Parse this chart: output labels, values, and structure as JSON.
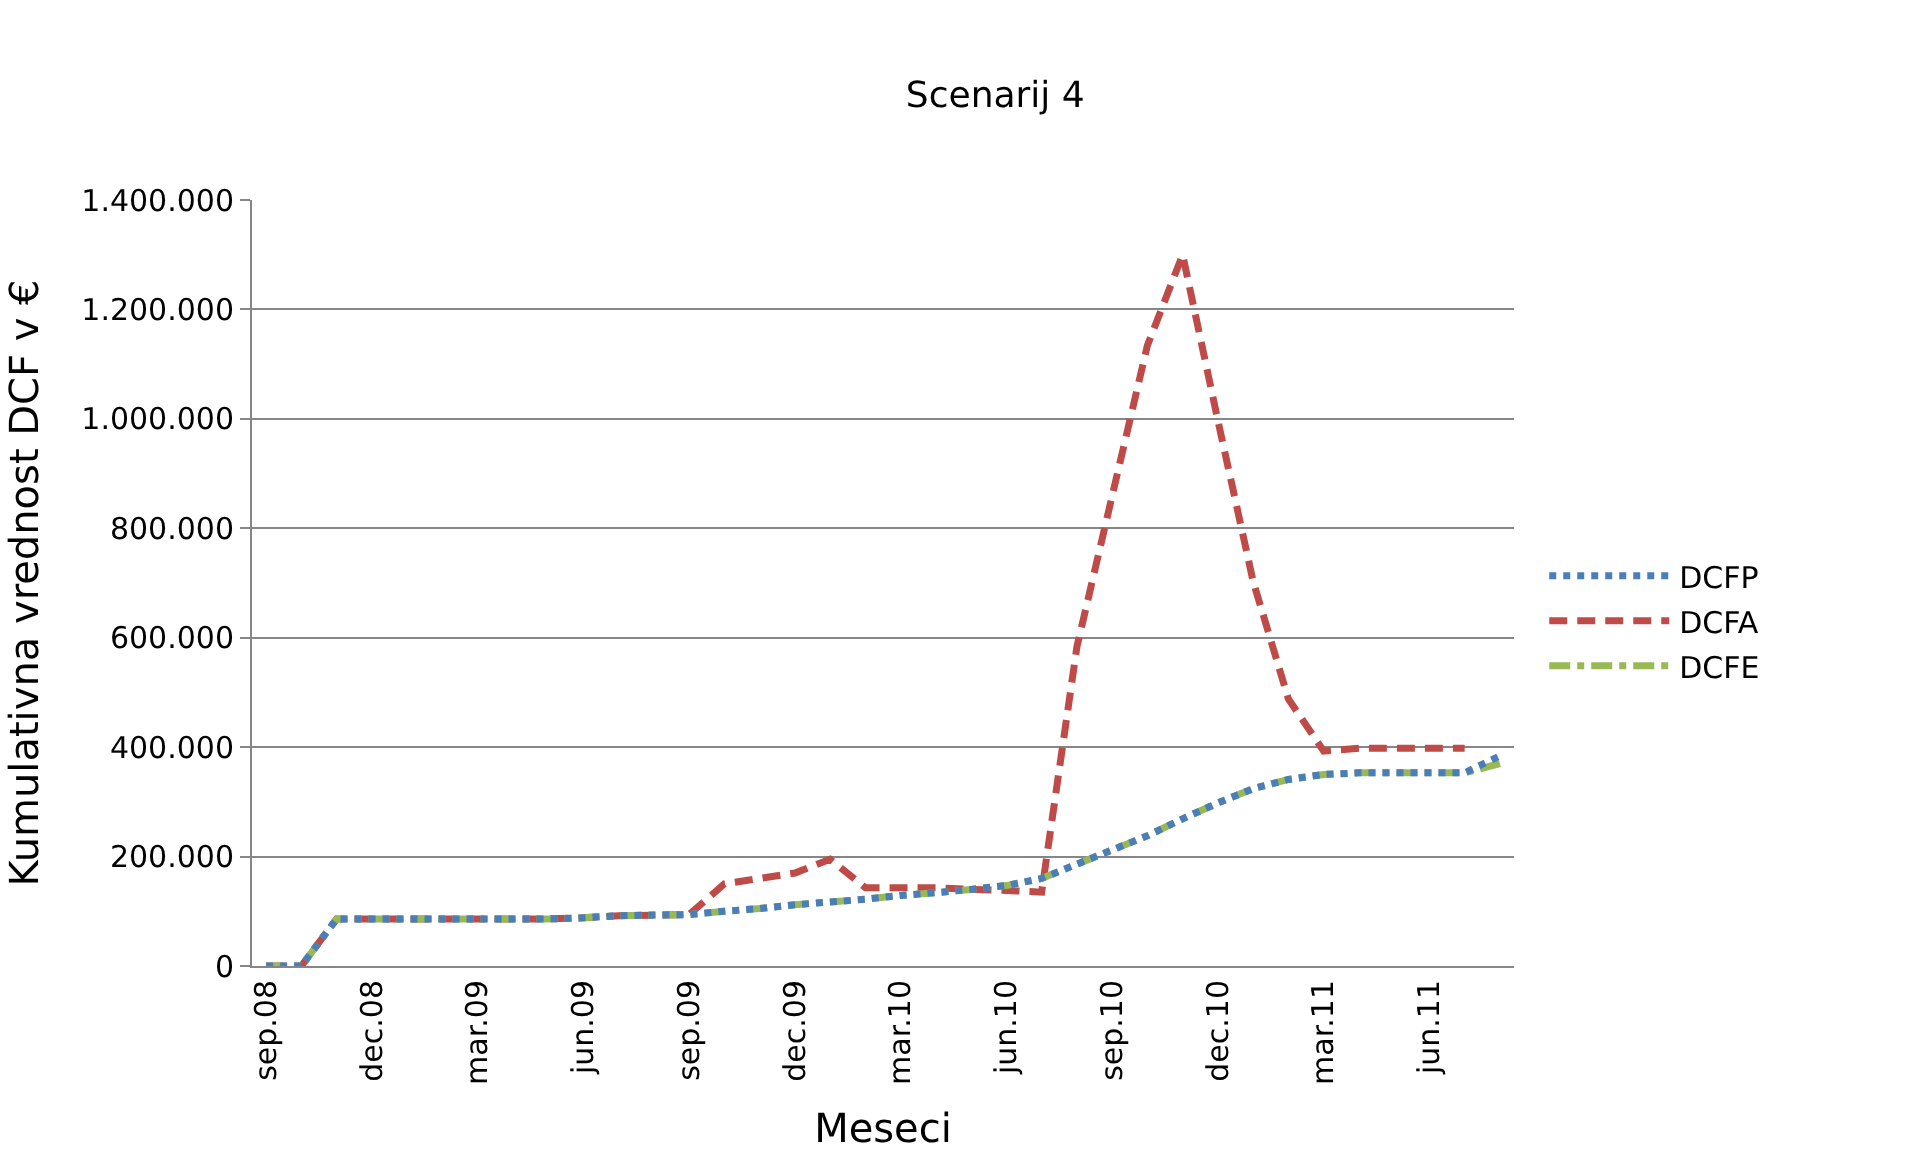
{
  "chart_data": {
    "type": "line",
    "title": "Scenarij 4",
    "xlabel": "Meseci",
    "ylabel": "Kumulativna vrednost DCF v €",
    "categories": [
      "sep.08",
      null,
      null,
      "dec.08",
      null,
      null,
      "mar.09",
      null,
      null,
      "jun.09",
      null,
      null,
      "sep.09",
      null,
      null,
      "dec.09",
      null,
      null,
      "mar.10",
      null,
      null,
      "jun.10",
      null,
      null,
      "sep.10",
      null,
      null,
      "dec.10",
      null,
      null,
      "mar.11",
      null,
      null,
      "jun.11",
      null,
      null
    ],
    "series": [
      {
        "name": "DCFP",
        "color": "#4a7ebb",
        "line_style": "dotted",
        "values": [
          0,
          0,
          86000,
          86000,
          86000,
          86000,
          86000,
          86000,
          86000,
          88000,
          92000,
          93000,
          94000,
          100000,
          105000,
          112000,
          117000,
          122000,
          129000,
          134000,
          140000,
          147000,
          160000,
          186000,
          212000,
          238000,
          269000,
          298000,
          324000,
          341000,
          350000,
          353000,
          353000,
          353000,
          353000,
          384000
        ]
      },
      {
        "name": "DCFA",
        "color": "#be4b48",
        "line_style": "dashed",
        "values": [
          0,
          0,
          86000,
          86000,
          86000,
          86000,
          86000,
          86000,
          86000,
          88000,
          92000,
          93000,
          94000,
          150000,
          160000,
          170000,
          195000,
          143000,
          143000,
          143000,
          140000,
          138000,
          135000,
          583000,
          859000,
          1134000,
          1300000,
          997000,
          703000,
          488000,
          393000,
          398000,
          398000,
          398000,
          398000,
          null
        ]
      },
      {
        "name": "DCFE",
        "color": "#98b954",
        "line_style": "dashdot",
        "values": [
          0,
          0,
          86000,
          86000,
          86000,
          86000,
          86000,
          86000,
          86000,
          88000,
          92000,
          93000,
          94000,
          100000,
          105000,
          112000,
          117000,
          122000,
          129000,
          134000,
          140000,
          147000,
          160000,
          186000,
          212000,
          238000,
          269000,
          298000,
          324000,
          341000,
          350000,
          353000,
          353000,
          353000,
          353000,
          370000
        ]
      }
    ],
    "ylim": [
      0,
      1400000
    ],
    "yticks": [
      {
        "value": 0,
        "label": "0"
      },
      {
        "value": 200000,
        "label": "200.000"
      },
      {
        "value": 400000,
        "label": "400.000"
      },
      {
        "value": 600000,
        "label": "600.000"
      },
      {
        "value": 800000,
        "label": "800.000"
      },
      {
        "value": 1000000,
        "label": "1.000.000"
      },
      {
        "value": 1200000,
        "label": "1.200.000"
      },
      {
        "value": 1400000,
        "label": "1.400.000"
      }
    ],
    "grid": "y",
    "legend": "right",
    "marker": "none"
  }
}
